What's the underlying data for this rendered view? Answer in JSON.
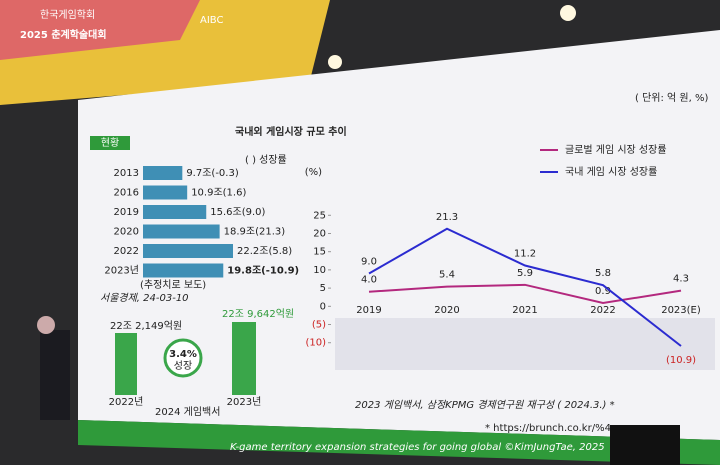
{
  "banner": {
    "title": "2025 춘계학술대회",
    "subtitle": "AIBC",
    "org": "한국게임학회"
  },
  "slide": {
    "badge": "현황",
    "unit": "( 단위: 억 원, %)",
    "news_source": "서울경제, 24-03-10",
    "estimate_note": "(추정치로 보도)",
    "growth_legend": "( ) 성장률",
    "book": "2024 게임백서",
    "left_bar_2022": "22조 2,149억원",
    "right_bar_2023": "22조 9,642억원",
    "growth": "3.4%",
    "growth_word": "성장",
    "year_2022": "2022년",
    "year_2023": "2023년",
    "source": "2023 게임백서, 삼정KPMG 경제연구원 재구성 ( 2024.3.) *",
    "link": "* https://brunch.co.kr/%4",
    "footer": "K-game territory expansion strategies for going global ©KimJungTae, 2025"
  },
  "chart_data": [
    {
      "type": "line",
      "title": "국내외 게임시장 규모 추이",
      "y_label": "(%)",
      "categories": [
        "2019",
        "2020",
        "2021",
        "2022",
        "2023(E)"
      ],
      "series": [
        {
          "name": "글로벌 게임 시장 성장률",
          "color": "#b3287e",
          "values": [
            4.0,
            5.4,
            5.9,
            0.9,
            4.3
          ],
          "value_labels": [
            "4.0",
            "5.4",
            "5.9",
            "0.9",
            "4.3"
          ]
        },
        {
          "name": "국내 게임 시장 성장률",
          "color": "#2b2bd0",
          "values": [
            9.0,
            21.3,
            11.2,
            5.8,
            -10.9
          ],
          "value_labels": [
            "9.0",
            "21.3",
            "11.2",
            "5.8",
            "(10.9)"
          ]
        }
      ],
      "ylim": [
        -12,
        27
      ],
      "yticks": [
        25,
        20,
        15,
        10,
        5,
        0,
        {
          "value": -5,
          "label": "(5)"
        },
        {
          "value": -10,
          "label": "(10)"
        }
      ],
      "grid": false
    },
    {
      "type": "hbar",
      "color": "#3f8fb5",
      "categories": [
        "2013",
        "2016",
        "2019",
        "2020",
        "2022",
        "2023년"
      ],
      "values": [
        9.7,
        10.9,
        15.6,
        18.9,
        22.2,
        19.8
      ],
      "value_labels": [
        "9.7조(-0.3)",
        "10.9조(1.6)",
        "15.6조(9.0)",
        "18.9조(21.3)",
        "22.2조(5.8)",
        "19.8조(-10.9)"
      ]
    }
  ]
}
